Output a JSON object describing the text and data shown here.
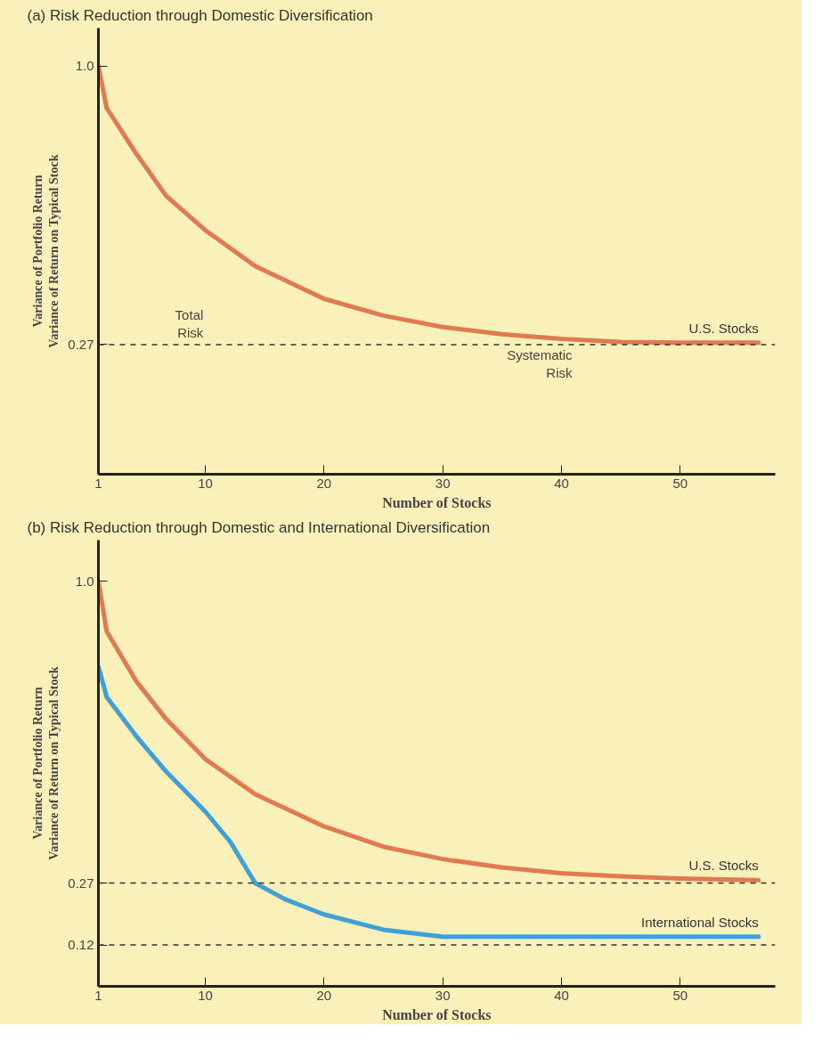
{
  "chart_data": [
    {
      "type": "line",
      "title": "(a) Risk Reduction through Domestic Diversification",
      "xlabel": "Number of Stocks",
      "ylabel": "Variance of Portfolio Return\nVariance of Return on Typical Stock",
      "xlim": [
        1,
        58
      ],
      "xticks": [
        1,
        10,
        20,
        30,
        40,
        50
      ],
      "ylim": [
        -0.07,
        1.1
      ],
      "yticks": [
        {
          "value": 1.0,
          "label": "1.0"
        },
        {
          "value": 0.27,
          "label": "0.27"
        }
      ],
      "series": [
        {
          "name": "U.S. Stocks",
          "color": "#e07a50",
          "x": [
            1,
            1.7,
            4.2,
            6.7,
            10,
            14.2,
            20,
            25,
            30,
            35,
            40,
            45,
            50,
            56.6
          ],
          "values": [
            1.0,
            0.89,
            0.77,
            0.66,
            0.57,
            0.476,
            0.39,
            0.346,
            0.316,
            0.297,
            0.285,
            0.277,
            0.275,
            0.275
          ]
        }
      ],
      "ref_lines": [
        {
          "axis": "y",
          "value": 0.27,
          "line_style": "dashed",
          "color": "#333333"
        }
      ],
      "annotations": [
        "Total\nRisk",
        "Systematic\nRisk"
      ],
      "line_style": "solid"
    },
    {
      "type": "line",
      "title": "(b) Risk Reduction through Domestic and International Diversification",
      "xlabel": "Number of Stocks",
      "ylabel": "Variance of Portfolio Return\nVariance of Return on Typical Stock",
      "xlim": [
        1,
        58
      ],
      "xticks": [
        1,
        10,
        20,
        30,
        40,
        50
      ],
      "ylim": [
        0.02,
        1.1
      ],
      "yticks": [
        {
          "value": 1.0,
          "label": "1.0"
        },
        {
          "value": 0.27,
          "label": "0.27"
        },
        {
          "value": 0.12,
          "label": "0.12"
        }
      ],
      "series": [
        {
          "name": "U.S. Stocks",
          "color": "#e07a50",
          "x": [
            1,
            1.7,
            4.2,
            6.7,
            10,
            14.2,
            20,
            25,
            30,
            35,
            40,
            45,
            50,
            56.6
          ],
          "values": [
            1.0,
            0.879,
            0.758,
            0.667,
            0.57,
            0.485,
            0.407,
            0.358,
            0.328,
            0.308,
            0.294,
            0.286,
            0.281,
            0.277
          ]
        },
        {
          "name": "International Stocks",
          "color": "#3fa0d8",
          "x": [
            1,
            1.7,
            4.2,
            6.7,
            10,
            12.1,
            14.2,
            16.7,
            20,
            25,
            30,
            35,
            56.6
          ],
          "values": [
            0.794,
            0.72,
            0.625,
            0.54,
            0.443,
            0.37,
            0.27,
            0.231,
            0.194,
            0.157,
            0.14,
            0.14,
            0.14
          ]
        }
      ],
      "ref_lines": [
        {
          "axis": "y",
          "value": 0.27,
          "line_style": "dashed",
          "color": "#333333"
        },
        {
          "axis": "y",
          "value": 0.12,
          "line_style": "dashed",
          "color": "#333333"
        }
      ],
      "line_style": "solid"
    }
  ]
}
